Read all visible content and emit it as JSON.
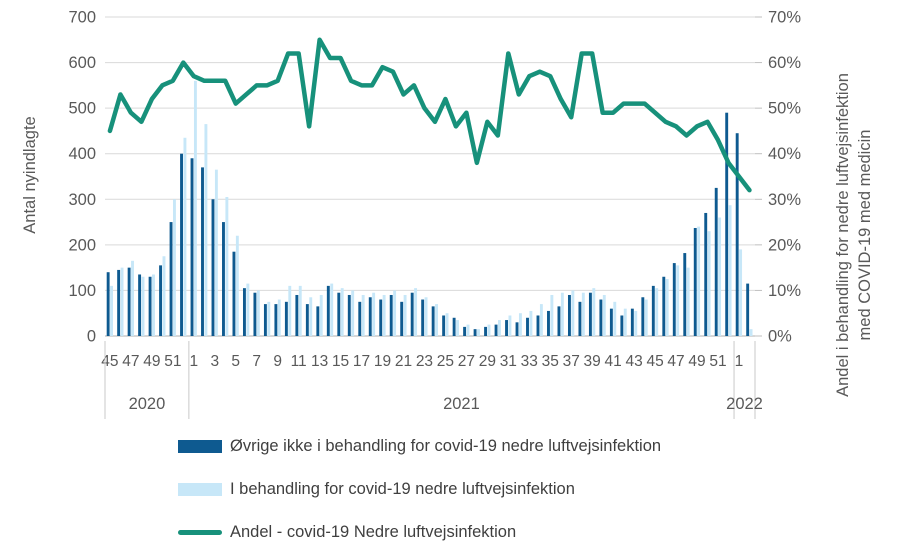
{
  "page": {
    "background": "#ffffff"
  },
  "chart_data": {
    "type": "bar",
    "subtype": "weekly bar + line combo",
    "left_axis": {
      "title": "Antal nyindlagte",
      "min": 0,
      "max": 700,
      "step": 100
    },
    "right_axis": {
      "title_line1": "Andel i behandling for nedre luftvejsinfektion",
      "title_line2": "med COVID-19 med medicin",
      "min": 0,
      "max": 70,
      "step": 10,
      "unit": "%"
    },
    "x_axis": {
      "week_labels": [
        "45",
        "",
        "47",
        "",
        "49",
        "",
        "51",
        "",
        "1",
        "",
        "3",
        "",
        "5",
        "",
        "7",
        "",
        "9",
        "",
        "11",
        "",
        "13",
        "",
        "15",
        "",
        "17",
        "",
        "19",
        "",
        "21",
        "",
        "23",
        "",
        "25",
        "",
        "27",
        "",
        "29",
        "",
        "31",
        "",
        "33",
        "",
        "35",
        "",
        "37",
        "",
        "39",
        "",
        "41",
        "",
        "43",
        "",
        "45",
        "",
        "47",
        "",
        "49",
        "",
        "51",
        "",
        "1",
        ""
      ],
      "year_groups": [
        {
          "label": "2020",
          "start_index": 0,
          "end_index": 7
        },
        {
          "label": "2021",
          "start_index": 8,
          "end_index": 59
        },
        {
          "label": "2022",
          "start_index": 60,
          "end_index": 61
        }
      ]
    },
    "series": [
      {
        "name": "Øvrige ikke i behandling for covid-19 nedre luftvejsinfektion",
        "type": "bar",
        "axis": "left",
        "color": "#0e5a90",
        "values": [
          140,
          145,
          150,
          135,
          130,
          155,
          250,
          400,
          390,
          370,
          300,
          250,
          185,
          105,
          95,
          70,
          70,
          75,
          90,
          70,
          65,
          110,
          95,
          90,
          75,
          85,
          80,
          90,
          75,
          95,
          80,
          65,
          45,
          40,
          20,
          15,
          20,
          25,
          35,
          30,
          40,
          45,
          55,
          65,
          90,
          75,
          95,
          80,
          60,
          45,
          60,
          85,
          110,
          130,
          160,
          182,
          237,
          270,
          325,
          490,
          445,
          115
        ]
      },
      {
        "name": "I behandling for covid-19 nedre luftvejsinfektion",
        "type": "bar",
        "axis": "left",
        "color": "#c7e7f8",
        "values": [
          110,
          150,
          165,
          130,
          135,
          175,
          300,
          435,
          560,
          465,
          365,
          305,
          220,
          115,
          100,
          75,
          80,
          110,
          110,
          85,
          90,
          115,
          105,
          100,
          90,
          95,
          90,
          100,
          90,
          105,
          85,
          70,
          50,
          35,
          25,
          15,
          25,
          35,
          45,
          50,
          55,
          70,
          90,
          95,
          100,
          95,
          105,
          90,
          75,
          60,
          55,
          80,
          105,
          125,
          155,
          150,
          240,
          230,
          260,
          287,
          190,
          15
        ]
      },
      {
        "name": "Andel - covid-19 Nedre luftvejsinfektion",
        "type": "line",
        "axis": "right",
        "color": "#17917b",
        "values": [
          45,
          53,
          49,
          47,
          52,
          55,
          56,
          60,
          57,
          56,
          56,
          56,
          51,
          53,
          55,
          55,
          56,
          62,
          62,
          46,
          65,
          61,
          61,
          56,
          55,
          55,
          59,
          58,
          53,
          55,
          50,
          47,
          52,
          46,
          49,
          38,
          47,
          44,
          62,
          53,
          57,
          58,
          57,
          52,
          48,
          62,
          62,
          49,
          49,
          51,
          51,
          51,
          49,
          47,
          46,
          44,
          46,
          47,
          43,
          38,
          35,
          32
        ]
      }
    ],
    "grid": {
      "horizontal": true,
      "vertical": false,
      "color": "#d9d9d9"
    },
    "axis_line_color": "#bfbfbf",
    "tick_text_color": "#595959",
    "legend_position": "bottom-left"
  }
}
